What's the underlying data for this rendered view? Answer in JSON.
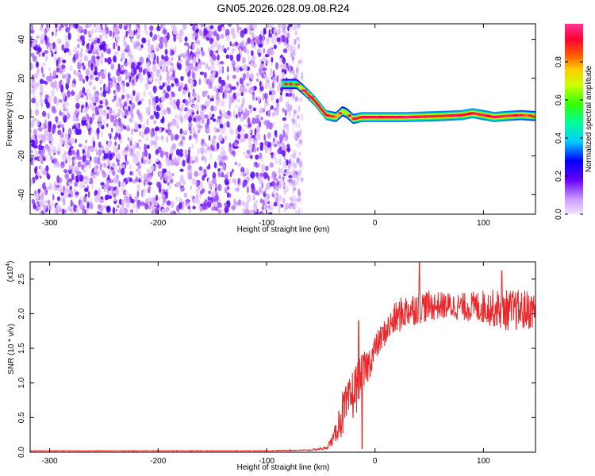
{
  "title": "GN05.2026.028.09.08.R24",
  "chart_data": [
    {
      "type": "heatmap",
      "xlabel": "Height of straight line (km)",
      "ylabel": "Frequency (Hz)",
      "xlim": [
        -318,
        148
      ],
      "ylim": [
        -50,
        48
      ],
      "xticks": [
        -300,
        -200,
        -100,
        0,
        100
      ],
      "yticks": [
        -40,
        -20,
        0,
        20,
        40
      ],
      "noise_region": {
        "x": [
          -318,
          -70
        ],
        "y": [
          -50,
          48
        ],
        "amplitude": [
          0.02,
          0.22
        ]
      },
      "ridge": {
        "x": [
          -85,
          -72,
          -64,
          -55,
          -45,
          -36,
          -30,
          -26,
          -20,
          -12,
          0,
          30,
          60,
          80,
          90,
          100,
          110,
          120,
          135,
          148
        ],
        "frequency": [
          17,
          17,
          13,
          8,
          1,
          0,
          3,
          2,
          -1,
          0,
          0,
          0,
          0.5,
          1,
          2,
          1,
          0,
          0.5,
          1,
          0.5
        ],
        "peak_amplitude": [
          0.55,
          0.6,
          0.85,
          0.95,
          0.95,
          0.8,
          0.7,
          0.65,
          0.8,
          0.95,
          0.95,
          0.95,
          0.9,
          0.95,
          0.95,
          0.9,
          0.95,
          0.9,
          0.85,
          0.8
        ]
      },
      "colorbar": {
        "label": "Normalized spectral amplitude",
        "range": [
          0,
          1
        ],
        "ticks": [
          "0.0",
          "0.2",
          "0.4",
          "0.6",
          "0.8"
        ]
      }
    },
    {
      "type": "line",
      "xlabel": "Height of straight line (km)",
      "ylabel": "SNR (10 * v/v)",
      "scale_note": "(x10",
      "scale_exp": "4",
      "scale_close": ")",
      "xlim": [
        -318,
        148
      ],
      "ylim": [
        0,
        2.75
      ],
      "xticks": [
        -300,
        -200,
        -100,
        0,
        100
      ],
      "yticks": [
        "0.0",
        "0.5",
        "1.0",
        "1.5",
        "2.0",
        "2.5"
      ],
      "line_color": "#e8282a",
      "series": [
        {
          "x": [
            -318,
            -100,
            -60,
            -45,
            -38,
            -33,
            -30,
            -25,
            -20,
            -15,
            -10,
            -5,
            0,
            10,
            20,
            30,
            40,
            60,
            80,
            100,
            120,
            140,
            148
          ],
          "y": [
            0.02,
            0.02,
            0.03,
            0.06,
            0.2,
            0.45,
            0.55,
            0.7,
            0.85,
            1.0,
            1.15,
            1.3,
            1.5,
            1.75,
            1.95,
            2.05,
            2.1,
            2.12,
            2.1,
            2.1,
            2.05,
            2.05,
            2.05
          ],
          "noise_amplitude": [
            0.005,
            0.005,
            0.01,
            0.02,
            0.1,
            0.25,
            0.35,
            0.3,
            0.4,
            0.35,
            0.3,
            0.25,
            0.2,
            0.2,
            0.25,
            0.25,
            0.25,
            0.2,
            0.2,
            0.25,
            0.3,
            0.3,
            0.25
          ],
          "spikes": [
            {
              "x": -15,
              "y": 1.9
            },
            {
              "x": -12,
              "y": 0.05
            },
            {
              "x": 41,
              "y": 2.75
            },
            {
              "x": 117,
              "y": 2.62
            }
          ]
        }
      ]
    }
  ]
}
